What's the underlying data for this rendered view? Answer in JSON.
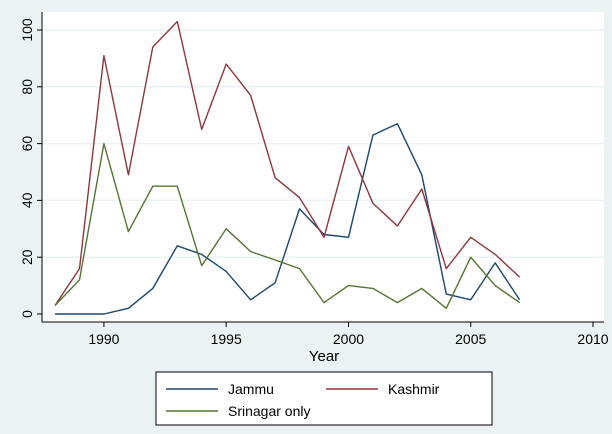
{
  "chart_data": {
    "type": "line",
    "xlabel": "Year",
    "ylabel": "",
    "xlim": [
      1988,
      2010
    ],
    "ylim": [
      0,
      105
    ],
    "xticks": [
      1990,
      1995,
      2000,
      2005,
      2010
    ],
    "yticks": [
      0,
      20,
      40,
      60,
      80,
      100
    ],
    "grid": true,
    "legend_position": "bottom",
    "x": [
      1988,
      1989,
      1990,
      1991,
      1992,
      1993,
      1994,
      1995,
      1996,
      1997,
      1998,
      1999,
      2000,
      2001,
      2002,
      2003,
      2004,
      2005,
      2006,
      2007
    ],
    "series": [
      {
        "name": "Jammu",
        "color": "#1a476f",
        "values": [
          0,
          0,
          0,
          2,
          9,
          24,
          21,
          15,
          5,
          11,
          37,
          28,
          27,
          63,
          67,
          49,
          7,
          5,
          18,
          5
        ]
      },
      {
        "name": "Kashmir",
        "color": "#90353b",
        "values": [
          3,
          16,
          91,
          49,
          94,
          103,
          65,
          88,
          77,
          48,
          41,
          27,
          59,
          39,
          31,
          44,
          16,
          27,
          21,
          13
        ]
      },
      {
        "name": "Srinagar only",
        "color": "#55752f",
        "values": [
          3,
          12,
          60,
          29,
          45,
          45,
          17,
          30,
          22,
          19,
          16,
          4,
          10,
          9,
          4,
          9,
          2,
          20,
          10,
          4
        ]
      }
    ]
  }
}
